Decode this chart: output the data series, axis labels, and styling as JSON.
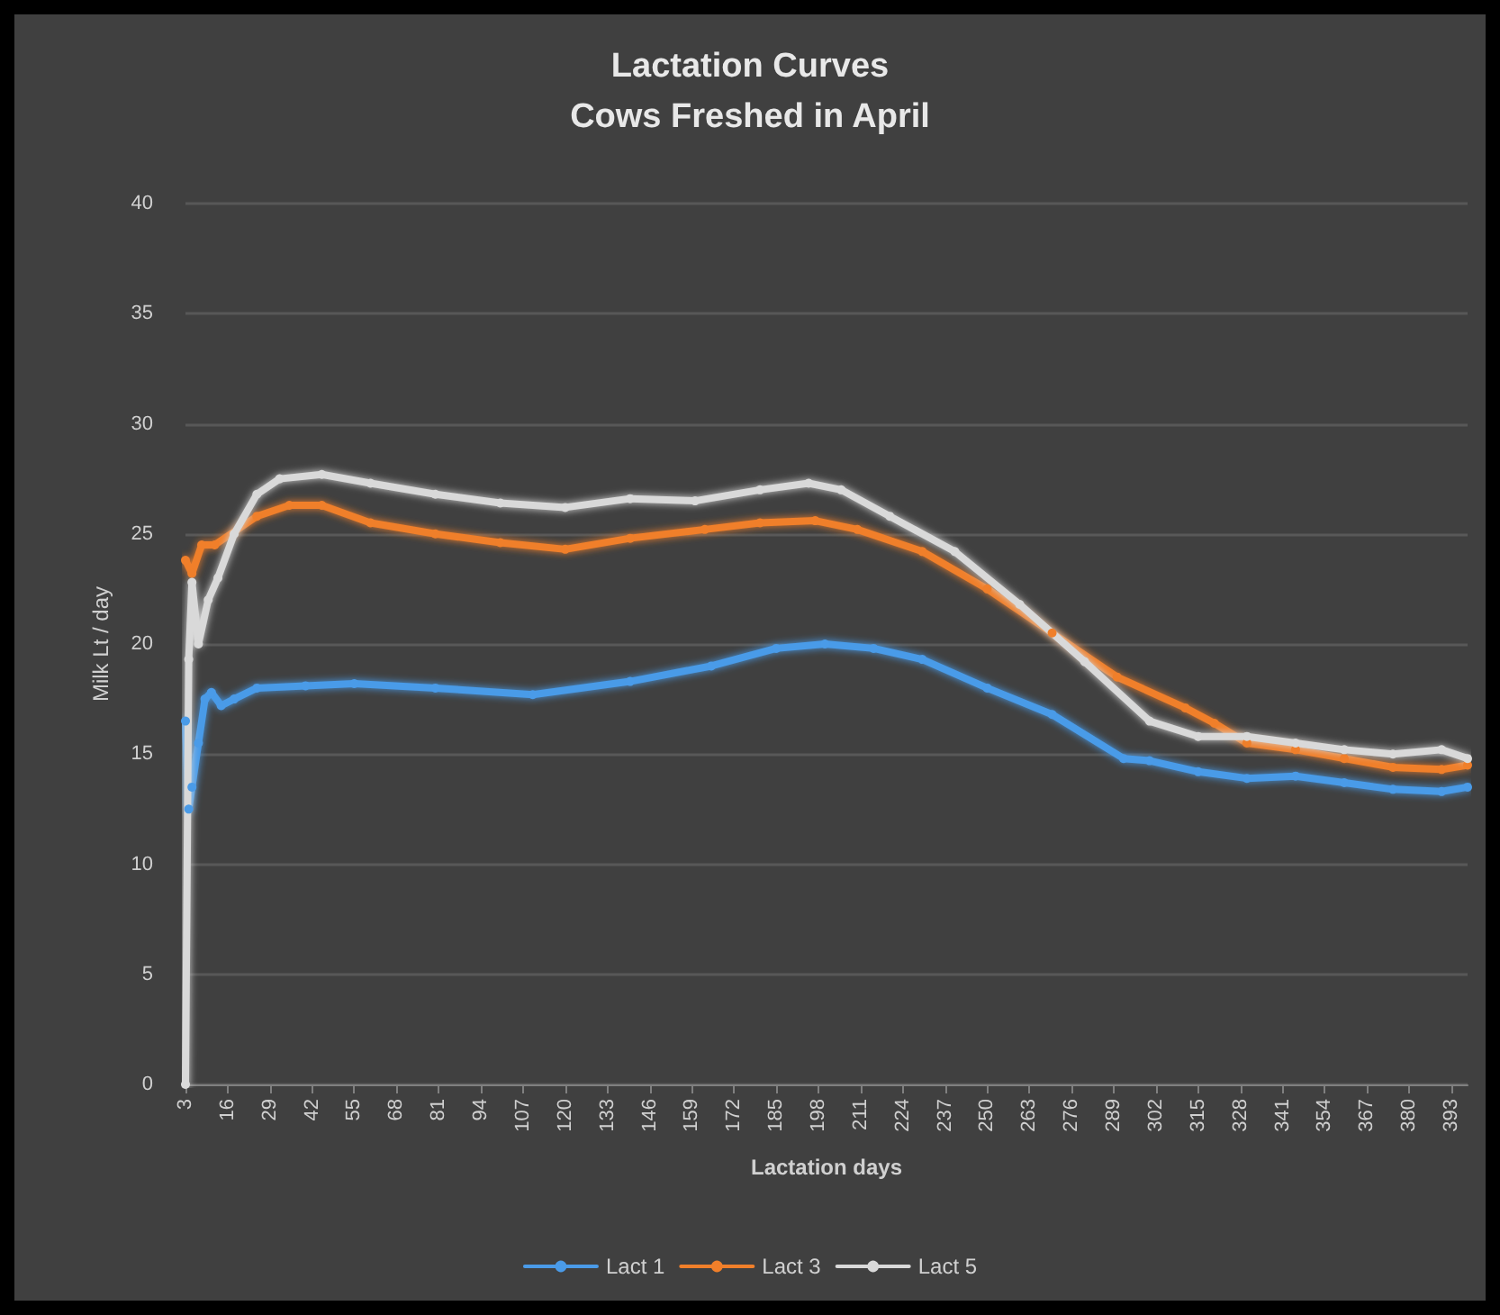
{
  "chart_data": {
    "type": "line",
    "title": "Lactation Curves\nCows Freshed in April",
    "xlabel": "Lactation days",
    "ylabel": "Milk Lt / day",
    "xlim": [
      3,
      398
    ],
    "xticks": [
      3,
      16,
      29,
      42,
      55,
      68,
      81,
      94,
      107,
      120,
      133,
      146,
      159,
      172,
      185,
      198,
      211,
      224,
      237,
      250,
      263,
      276,
      289,
      302,
      315,
      328,
      341,
      354,
      367,
      380,
      393
    ],
    "ylim": [
      0,
      40
    ],
    "yticks": [
      0,
      5,
      10,
      15,
      20,
      25,
      30,
      35,
      40
    ],
    "grid": "y",
    "legend": "bottom",
    "marker": "circle",
    "line_style": "solid",
    "series": [
      {
        "name": "Lact 1",
        "color": "#4a9be8",
        "x": [
          3,
          4,
          5,
          7,
          9,
          11,
          14,
          18,
          25,
          40,
          55,
          80,
          110,
          140,
          165,
          185,
          200,
          215,
          230,
          250,
          270,
          292,
          300,
          315,
          330,
          345,
          360,
          375,
          390,
          398
        ],
        "values": [
          16.5,
          12.5,
          13.5,
          15.5,
          17.5,
          17.8,
          17.2,
          17.5,
          18,
          18.1,
          18.2,
          18,
          17.7,
          18.3,
          19,
          19.8,
          20,
          19.8,
          19.3,
          18,
          16.8,
          14.8,
          14.7,
          14.2,
          13.9,
          14,
          13.7,
          13.4,
          13.3,
          13.5
        ]
      },
      {
        "name": "Lact 3",
        "color": "#f07f2a",
        "x": [
          3,
          5,
          8,
          12,
          25,
          35,
          45,
          60,
          80,
          100,
          120,
          140,
          163,
          180,
          197,
          210,
          230,
          250,
          270,
          290,
          311,
          320,
          330,
          345,
          360,
          375,
          390,
          398
        ],
        "values": [
          23.8,
          23.2,
          24.5,
          24.5,
          25.8,
          26.3,
          26.3,
          25.5,
          25,
          24.6,
          24.3,
          24.8,
          25.2,
          25.5,
          25.6,
          25.2,
          24.2,
          22.5,
          20.5,
          18.5,
          17.1,
          16.4,
          15.5,
          15.2,
          14.8,
          14.4,
          14.3,
          14.5
        ]
      },
      {
        "name": "Lact 5",
        "color": "#d9d9d9",
        "x": [
          3,
          4,
          5,
          7,
          10,
          13,
          18,
          25,
          32,
          45,
          60,
          80,
          100,
          120,
          140,
          160,
          180,
          195,
          205,
          220,
          240,
          260,
          280,
          300,
          315,
          330,
          345,
          360,
          375,
          390,
          398
        ],
        "values": [
          0,
          19.3,
          22.8,
          20,
          22,
          23,
          25,
          26.8,
          27.5,
          27.7,
          27.3,
          26.8,
          26.4,
          26.2,
          26.6,
          26.5,
          27,
          27.3,
          27,
          25.8,
          24.2,
          21.8,
          19.2,
          16.5,
          15.8,
          15.8,
          15.5,
          15.2,
          15,
          15.2,
          14.8
        ]
      }
    ]
  }
}
